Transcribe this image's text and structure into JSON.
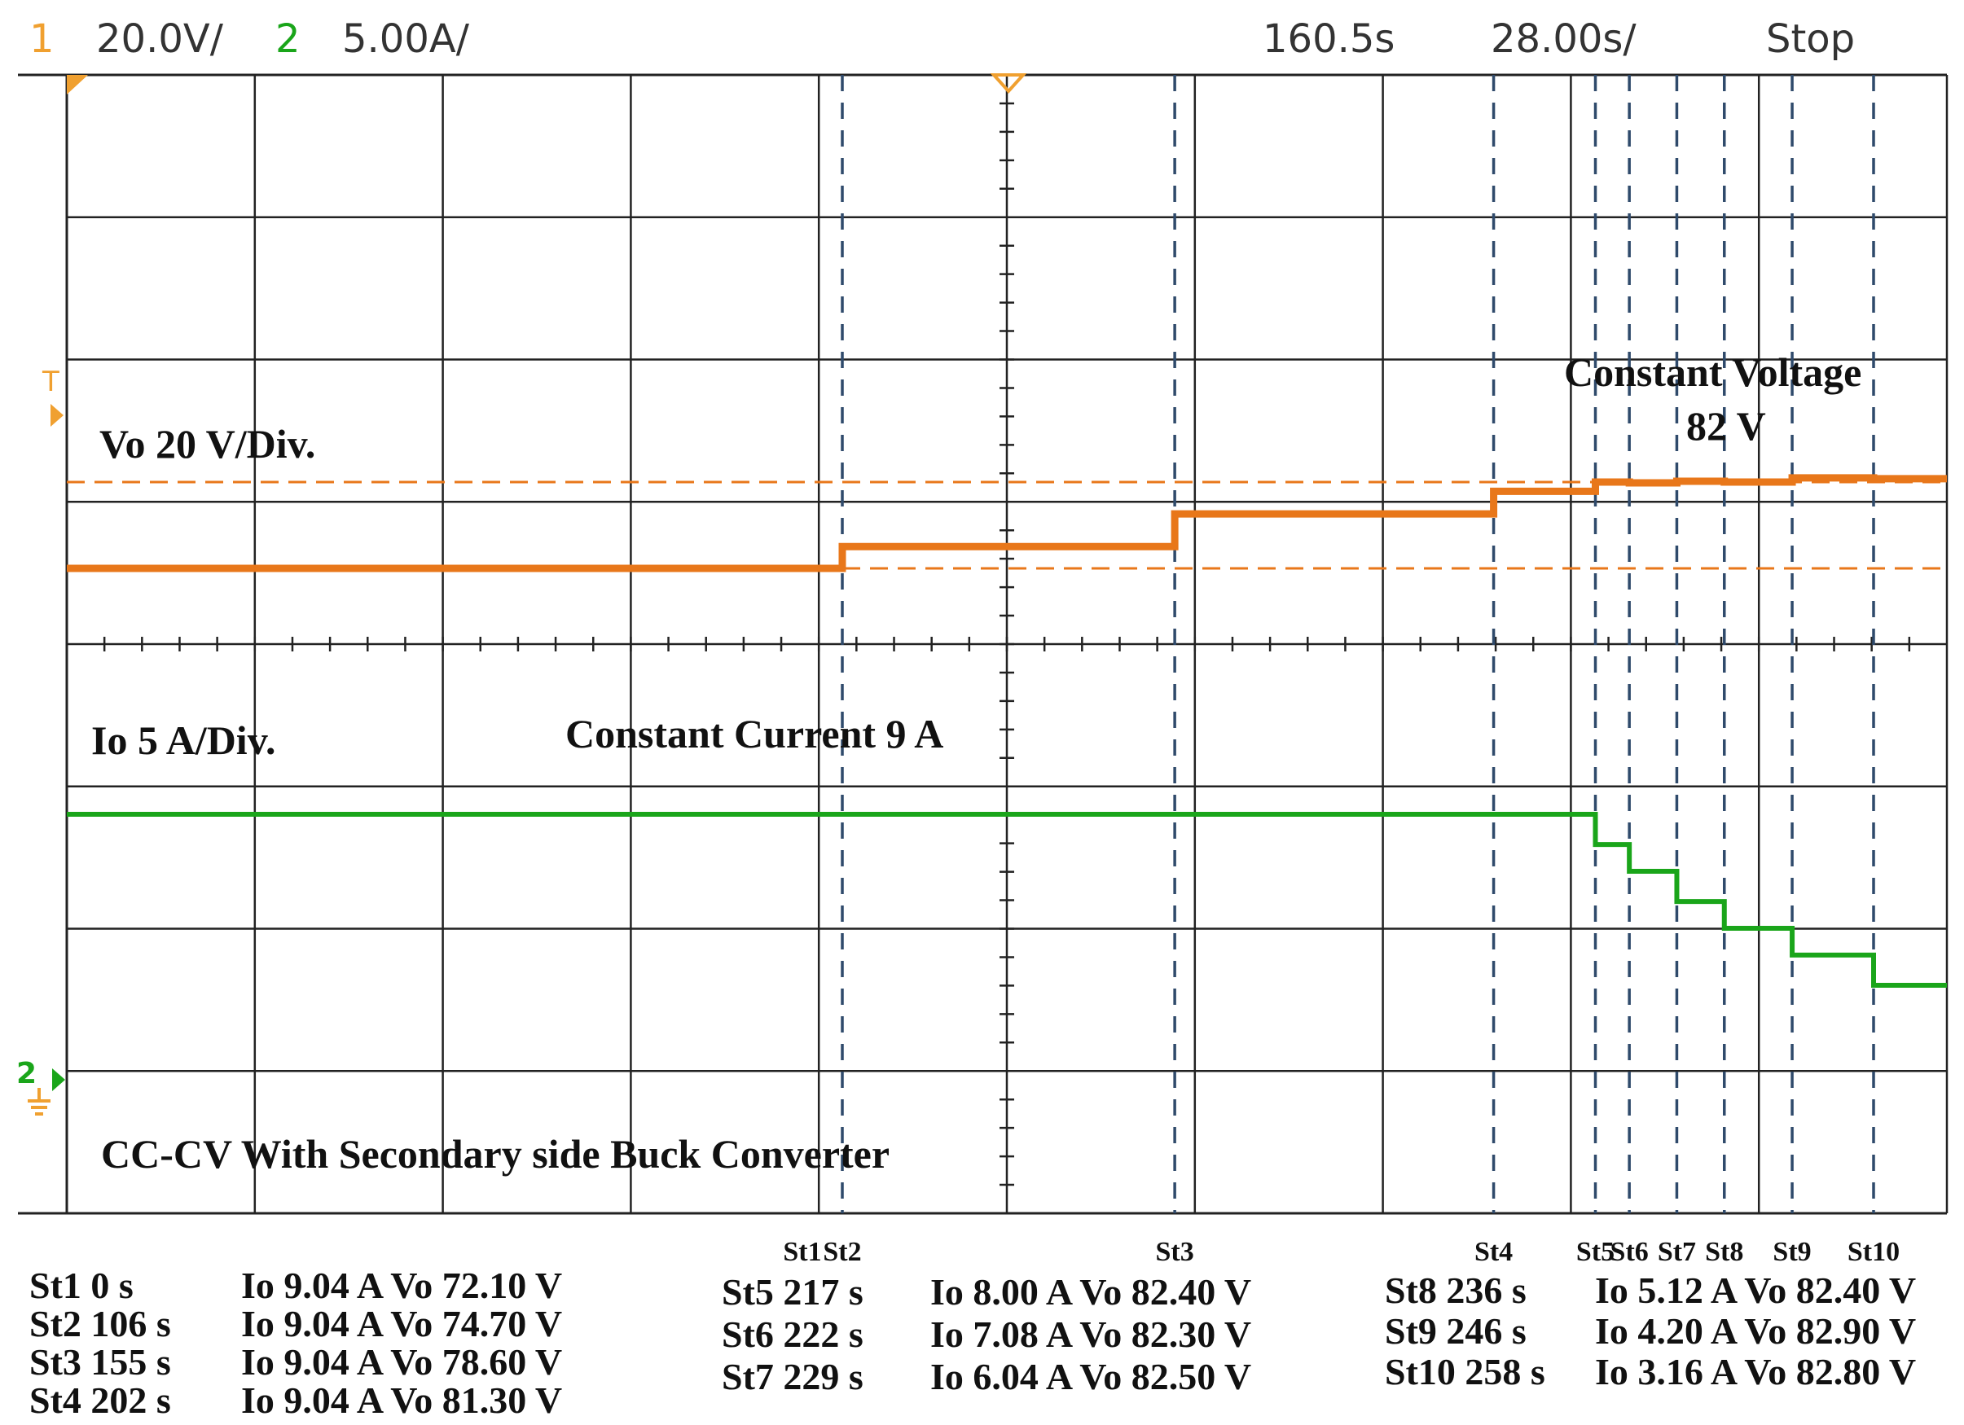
{
  "header": {
    "ch1_num": "1",
    "ch1_scale": "20.0V/",
    "ch2_num": "2",
    "ch2_scale": "5.00A/",
    "time_pos": "160.5s",
    "time_scale": "28.00s/",
    "run_state": "Stop"
  },
  "markers": {
    "trigger": "T",
    "ch2_ground": "2"
  },
  "annotations": {
    "vo_scale": "Vo 20 V/Div.",
    "io_scale": "Io 5 A/Div.",
    "cc_label": "Constant Current 9 A",
    "cv_label_line1": "Constant Voltage",
    "cv_label_line2": "82 V",
    "title": "CC-CV With Secondary side Buck Converter"
  },
  "step_labels": [
    "St1",
    "St2",
    "St3",
    "St4",
    "St5",
    "St6",
    "St7",
    "St8",
    "St9",
    "St10"
  ],
  "table": {
    "col1": [
      {
        "step": "St1 0 s",
        "values": "Io 9.04 A Vo 72.10 V"
      },
      {
        "step": "St2 106 s",
        "values": "Io 9.04 A Vo 74.70 V"
      },
      {
        "step": "St3 155 s",
        "values": "Io 9.04 A Vo 78.60 V"
      },
      {
        "step": "St4 202 s",
        "values": "Io 9.04 A Vo 81.30 V"
      }
    ],
    "col2": [
      {
        "step": "St5 217 s",
        "values": "Io 8.00 A Vo 82.40 V"
      },
      {
        "step": "St6 222 s",
        "values": "Io 7.08 A Vo 82.30 V"
      },
      {
        "step": "St7 229 s",
        "values": "Io 6.04 A Vo 82.50 V"
      }
    ],
    "col3": [
      {
        "step": "St8 236 s",
        "values": "Io 5.12 A Vo 82.40 V"
      },
      {
        "step": "St9 246 s",
        "values": "Io 4.20 A Vo 82.90 V"
      },
      {
        "step": "St10 258 s",
        "values": "Io 3.16 A Vo 82.80 V"
      }
    ]
  },
  "colors": {
    "vo_trace": "#e8771a",
    "io_trace": "#1aa51a",
    "grid": "#222222",
    "step_line": "#2f4a6b",
    "ch1": "#f0a030",
    "ch2": "#1aa51a"
  },
  "chart_data": {
    "type": "line",
    "x_unit": "s",
    "xlim": [
      0,
      280
    ],
    "steps": [
      {
        "name": "St1",
        "t": 0,
        "io": 9.04,
        "vo": 72.1
      },
      {
        "name": "St2",
        "t": 106,
        "io": 9.04,
        "vo": 74.7
      },
      {
        "name": "St3",
        "t": 155,
        "io": 9.04,
        "vo": 78.6
      },
      {
        "name": "St4",
        "t": 202,
        "io": 9.04,
        "vo": 81.3
      },
      {
        "name": "St5",
        "t": 217,
        "io": 8.0,
        "vo": 82.4
      },
      {
        "name": "St6",
        "t": 222,
        "io": 7.08,
        "vo": 82.3
      },
      {
        "name": "St7",
        "t": 229,
        "io": 6.04,
        "vo": 82.5
      },
      {
        "name": "St8",
        "t": 236,
        "io": 5.12,
        "vo": 82.4
      },
      {
        "name": "St9",
        "t": 246,
        "io": 4.2,
        "vo": 82.9
      },
      {
        "name": "St10",
        "t": 258,
        "io": 3.16,
        "vo": 82.8
      }
    ],
    "cursors_vo": [
      72.1,
      82.4
    ],
    "grid": true
  }
}
